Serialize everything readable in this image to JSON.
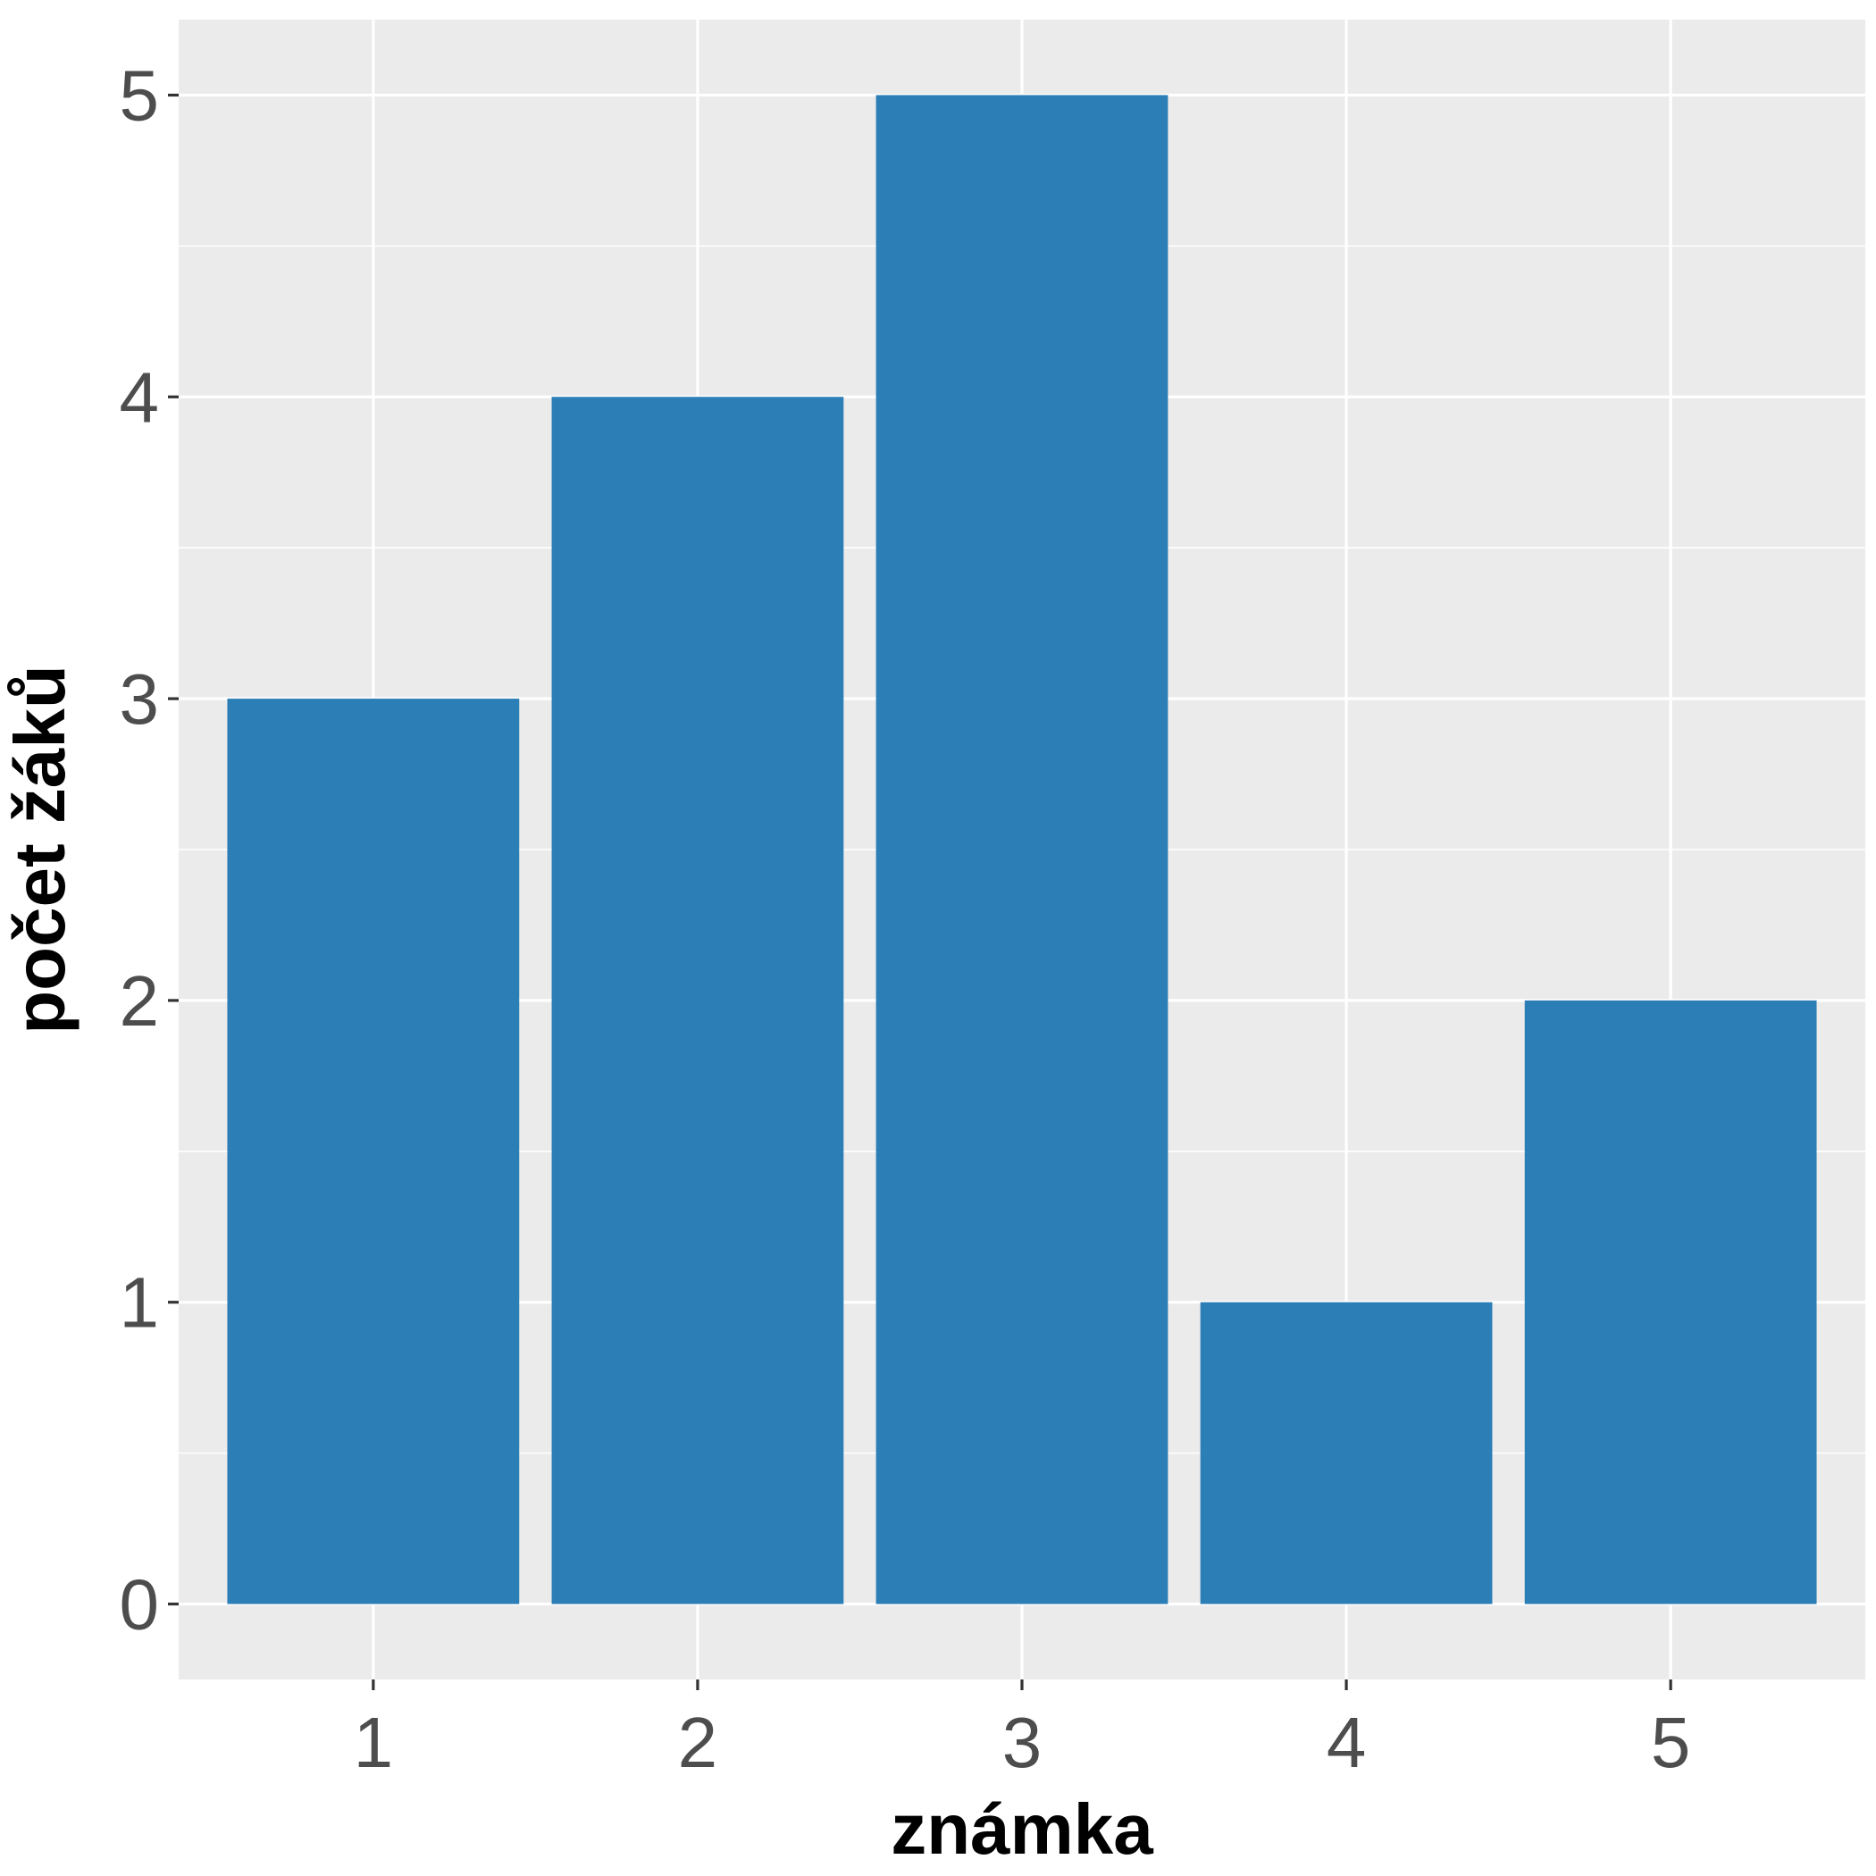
{
  "chart_data": {
    "type": "bar",
    "categories": [
      "1",
      "2",
      "3",
      "4",
      "5"
    ],
    "values": [
      3,
      4,
      5,
      1,
      2
    ],
    "xlabel": "známka",
    "ylabel": "počet žáků",
    "ylim": [
      -0.25,
      5.25
    ],
    "yticks": [
      "0",
      "1",
      "2",
      "3",
      "4",
      "5"
    ],
    "grid": true,
    "bar_color": "#2B7EB6",
    "panel_color": "#EBEBEB"
  }
}
